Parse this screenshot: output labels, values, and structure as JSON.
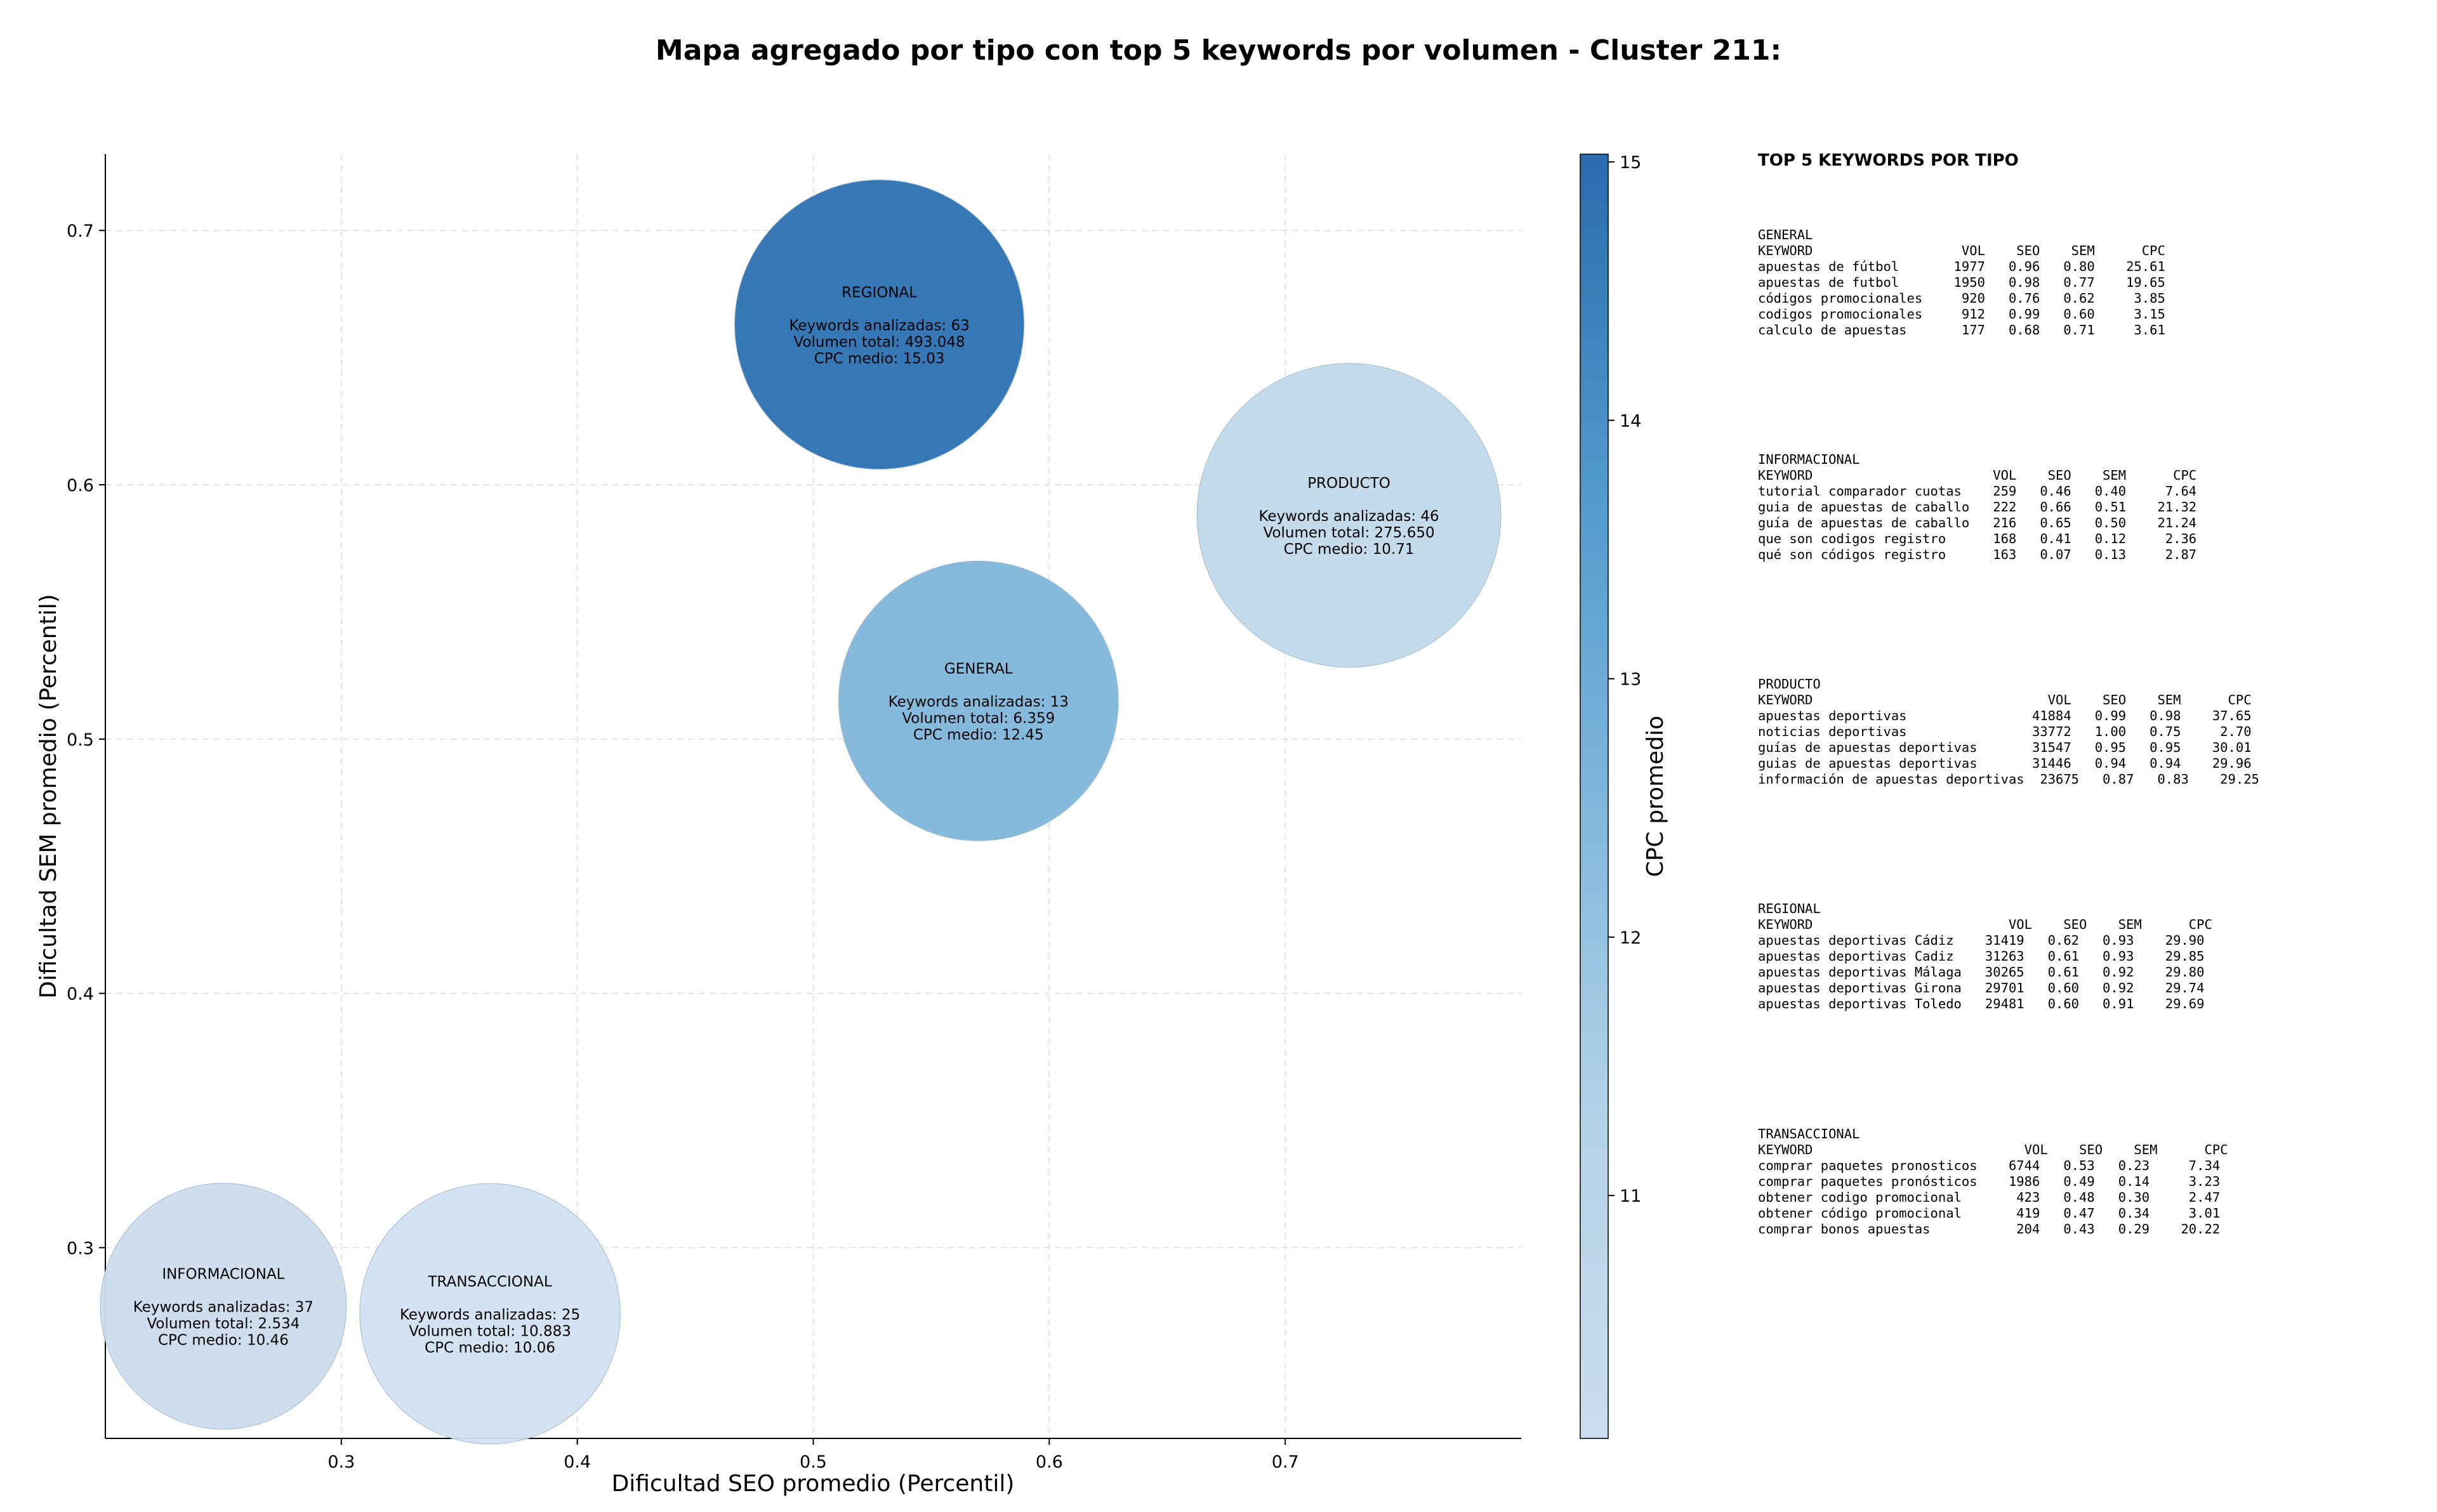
{
  "chart_data": {
    "type": "scatter",
    "subtype": "bubble",
    "title": "Mapa agregado por tipo con top 5 keywords por volumen - Cluster 211:",
    "xlabel": "Dificultad SEO promedio (Percentil)",
    "ylabel": "Dificultad SEM promedio (Percentil)",
    "xlim": [
      0.2,
      0.8
    ],
    "ylim": [
      0.225,
      0.73
    ],
    "xticks": [
      "0.3",
      "0.4",
      "0.5",
      "0.6",
      "0.7"
    ],
    "yticks": [
      "0.3",
      "0.4",
      "0.5",
      "0.6",
      "0.7"
    ],
    "grid": true,
    "colorbar": {
      "label": "CPC promedio",
      "range": [
        10.06,
        15.03
      ],
      "ticks": [
        "11",
        "12",
        "13",
        "14",
        "15"
      ],
      "colormap": [
        "#c6dbef",
        "#9ecae1",
        "#6baed6",
        "#4292c6",
        "#2c6fb0"
      ]
    },
    "points": [
      {
        "label": "REGIONAL",
        "x": 0.528,
        "y": 0.663,
        "keywords_text": "Keywords analizadas: 63",
        "volume_text": "Volumen total: 493.048",
        "cpc_text": "CPC medio: 15.03",
        "cpc": 15.03,
        "size": 60,
        "color": "#2b71b1"
      },
      {
        "label": "PRODUCTO",
        "x": 0.727,
        "y": 0.588,
        "keywords_text": "Keywords analizadas: 46",
        "volume_text": "Volumen total: 275.650",
        "cpc_text": "CPC medio: 10.71",
        "cpc": 10.71,
        "size": 63,
        "color": "#c1d9ea"
      },
      {
        "label": "GENERAL",
        "x": 0.57,
        "y": 0.515,
        "keywords_text": "Keywords analizadas: 13",
        "volume_text": "Volumen total: 6.359",
        "cpc_text": "CPC medio: 12.45",
        "cpc": 12.45,
        "size": 58,
        "color": "#7fb6db"
      },
      {
        "label": "INFORMACIONAL",
        "x": 0.25,
        "y": 0.277,
        "keywords_text": "Keywords analizadas: 37",
        "volume_text": "Volumen total: 2.534",
        "cpc_text": "CPC medio: 10.46",
        "cpc": 10.46,
        "size": 51,
        "color": "#cbdcec"
      },
      {
        "label": "TRANSACCIONAL",
        "x": 0.363,
        "y": 0.274,
        "keywords_text": "Keywords analizadas: 25",
        "volume_text": "Volumen total: 10.883",
        "cpc_text": "CPC medio: 10.06",
        "cpc": 10.06,
        "size": 54,
        "color": "#d2e2f1"
      }
    ]
  },
  "panel": {
    "title": "TOP 5 KEYWORDS POR TIPO",
    "blocks": [
      {
        "type": "GENERAL",
        "header": "KEYWORD                   VOL    SEO    SEM      CPC",
        "rows": [
          "apuestas de fútbol       1977   0.96   0.80    25.61",
          "apuestas de futbol       1950   0.98   0.77    19.65",
          "códigos promocionales     920   0.76   0.62     3.85",
          "codigos promocionales     912   0.99   0.60     3.15",
          "calculo de apuestas       177   0.68   0.71     3.61"
        ]
      },
      {
        "type": "INFORMACIONAL",
        "header": "KEYWORD                       VOL    SEO    SEM      CPC",
        "rows": [
          "tutorial comparador cuotas    259   0.46   0.40     7.64",
          "guia de apuestas de caballo   222   0.66   0.51    21.32",
          "guía de apuestas de caballo   216   0.65   0.50    21.24",
          "que son codigos registro      168   0.41   0.12     2.36",
          "qué son códigos registro      163   0.07   0.13     2.87"
        ]
      },
      {
        "type": "PRODUCTO",
        "header": "KEYWORD                              VOL    SEO    SEM      CPC",
        "rows": [
          "apuestas deportivas                41884   0.99   0.98    37.65",
          "noticias deportivas                33772   1.00   0.75     2.70",
          "guías de apuestas deportivas       31547   0.95   0.95    30.01",
          "guias de apuestas deportivas       31446   0.94   0.94    29.96",
          "información de apuestas deportivas  23675   0.87   0.83    29.25"
        ]
      },
      {
        "type": "REGIONAL",
        "header": "KEYWORD                         VOL    SEO    SEM      CPC",
        "rows": [
          "apuestas deportivas Cádiz    31419   0.62   0.93    29.90",
          "apuestas deportivas Cadiz    31263   0.61   0.93    29.85",
          "apuestas deportivas Málaga   30265   0.61   0.92    29.80",
          "apuestas deportivas Girona   29701   0.60   0.92    29.74",
          "apuestas deportivas Toledo   29481   0.60   0.91    29.69"
        ]
      },
      {
        "type": "TRANSACCIONAL",
        "header": "KEYWORD                           VOL    SEO    SEM      CPC",
        "rows": [
          "comprar paquetes pronosticos    6744   0.53   0.23     7.34",
          "comprar paquetes pronósticos    1986   0.49   0.14     3.23",
          "obtener codigo promocional       423   0.48   0.30     2.47",
          "obtener código promocional       419   0.47   0.34     3.01",
          "comprar bonos apuestas           204   0.43   0.29    20.22"
        ]
      }
    ]
  }
}
